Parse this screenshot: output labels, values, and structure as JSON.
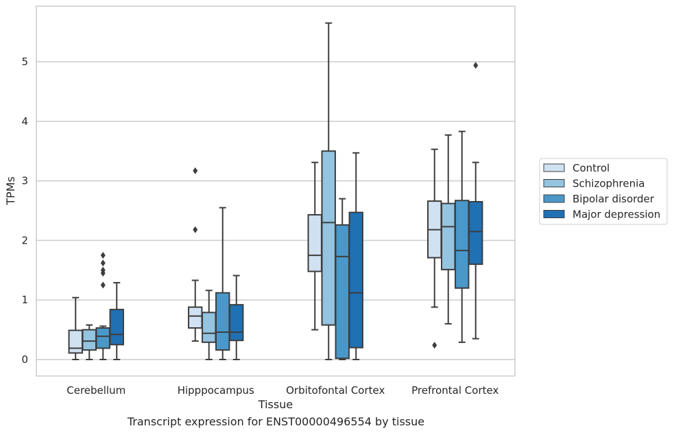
{
  "caption": "Transcript expression for ENST00000496554 by tissue",
  "chart_data": {
    "type": "box",
    "xlabel": "Tissue",
    "ylabel": "TPMs",
    "ylim": [
      -0.28,
      5.95
    ],
    "yticks": [
      0,
      1,
      2,
      3,
      4,
      5
    ],
    "grid": "horizontal",
    "legend_placement": "right-center",
    "categories": [
      "Cerebellum",
      "Hipppocampus",
      "Orbitofontal Cortex",
      "Prefrontal Cortex"
    ],
    "series": [
      {
        "name": "Control",
        "color": "#d0e1f2",
        "boxes": [
          {
            "min": 0.0,
            "q1": 0.11,
            "median": 0.19,
            "q3": 0.49,
            "max": 1.04,
            "outliers": []
          },
          {
            "min": 0.31,
            "q1": 0.53,
            "median": 0.73,
            "q3": 0.88,
            "max": 1.33,
            "outliers": [
              3.17,
              2.18
            ]
          },
          {
            "min": 0.5,
            "q1": 1.48,
            "median": 1.75,
            "q3": 2.43,
            "max": 3.31,
            "outliers": []
          },
          {
            "min": 0.88,
            "q1": 1.71,
            "median": 2.18,
            "q3": 2.66,
            "max": 3.53,
            "outliers": [
              0.24
            ]
          }
        ]
      },
      {
        "name": "Schizophrenia",
        "color": "#94c4df",
        "boxes": [
          {
            "min": 0.0,
            "q1": 0.16,
            "median": 0.31,
            "q3": 0.5,
            "max": 0.58,
            "outliers": []
          },
          {
            "min": 0.0,
            "q1": 0.29,
            "median": 0.44,
            "q3": 0.79,
            "max": 1.16,
            "outliers": []
          },
          {
            "min": 0.0,
            "q1": 0.58,
            "median": 2.3,
            "q3": 3.5,
            "max": 5.65,
            "outliers": []
          },
          {
            "min": 0.6,
            "q1": 1.51,
            "median": 2.23,
            "q3": 2.62,
            "max": 3.77,
            "outliers": []
          }
        ]
      },
      {
        "name": "Bipolar disorder",
        "color": "#4a98c9",
        "boxes": [
          {
            "min": 0.0,
            "q1": 0.19,
            "median": 0.39,
            "q3": 0.53,
            "max": 0.56,
            "outliers": [
              1.75,
              1.62,
              1.5,
              1.45,
              1.25
            ]
          },
          {
            "min": 0.0,
            "q1": 0.16,
            "median": 0.46,
            "q3": 1.12,
            "max": 2.55,
            "outliers": []
          },
          {
            "min": 0.0,
            "q1": 0.02,
            "median": 1.73,
            "q3": 2.26,
            "max": 2.7,
            "outliers": []
          },
          {
            "min": 0.29,
            "q1": 1.2,
            "median": 1.83,
            "q3": 2.67,
            "max": 3.83,
            "outliers": []
          }
        ]
      },
      {
        "name": "Major depression",
        "color": "#2070b4",
        "boxes": [
          {
            "min": 0.0,
            "q1": 0.25,
            "median": 0.42,
            "q3": 0.84,
            "max": 1.29,
            "outliers": []
          },
          {
            "min": 0.0,
            "q1": 0.32,
            "median": 0.46,
            "q3": 0.92,
            "max": 1.41,
            "outliers": []
          },
          {
            "min": 0.0,
            "q1": 0.2,
            "median": 1.12,
            "q3": 2.47,
            "max": 3.47,
            "outliers": []
          },
          {
            "min": 0.35,
            "q1": 1.6,
            "median": 2.15,
            "q3": 2.65,
            "max": 3.31,
            "outliers": [
              4.94
            ]
          }
        ]
      }
    ]
  }
}
